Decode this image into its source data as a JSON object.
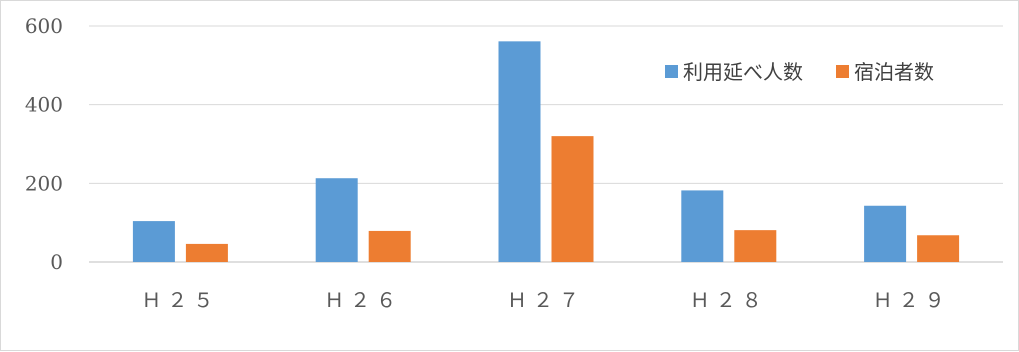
{
  "chart_data": {
    "type": "bar",
    "categories": [
      "Ｈ２５",
      "Ｈ２６",
      "Ｈ２７",
      "Ｈ２８",
      "Ｈ２９"
    ],
    "series": [
      {
        "name": "利用延べ人数",
        "color": "#5b9bd5",
        "values": [
          104,
          213,
          561,
          182,
          143
        ]
      },
      {
        "name": "宿泊者数",
        "color": "#ed7d31",
        "values": [
          46,
          79,
          320,
          81,
          68
        ]
      }
    ],
    "ylim": [
      0,
      600
    ],
    "yticks": [
      0,
      200,
      400,
      600
    ],
    "ytick_labels": [
      "0",
      "200",
      "400",
      "600"
    ],
    "grid": true,
    "legend_position": "top-right",
    "title": "",
    "xlabel": "",
    "ylabel": ""
  }
}
